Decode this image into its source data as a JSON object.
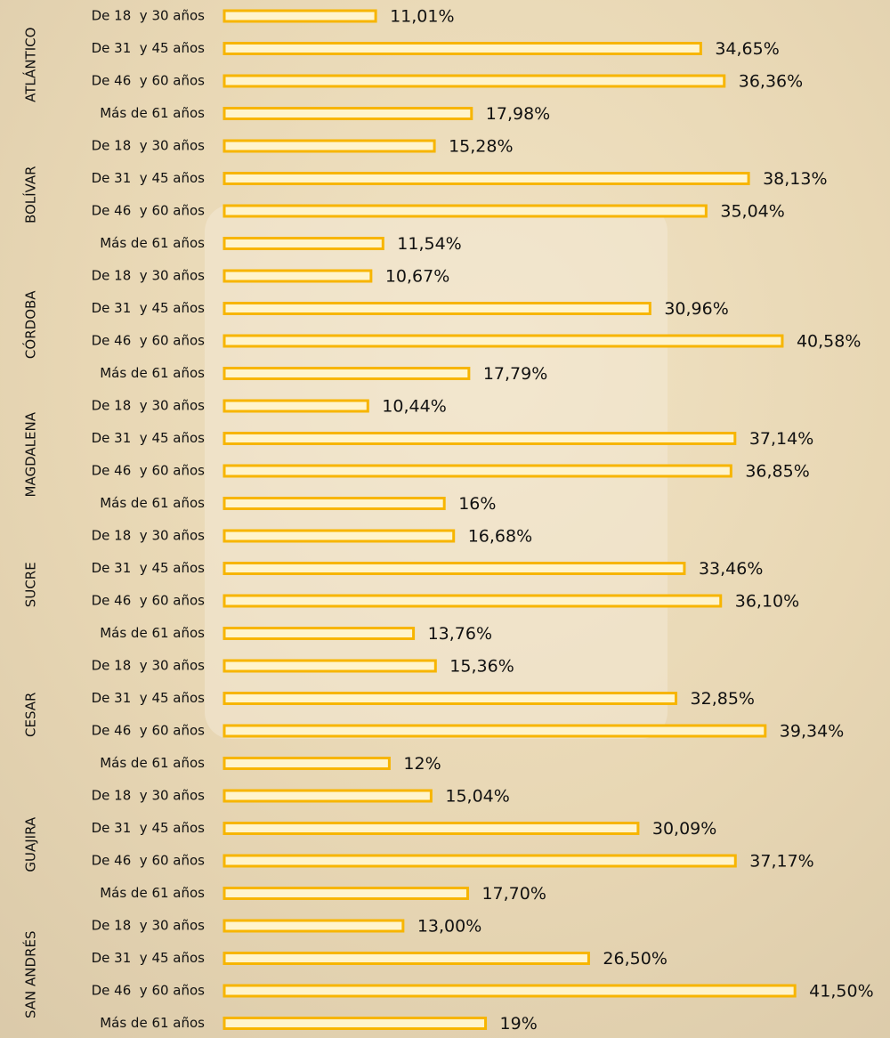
{
  "chart_data": {
    "type": "bar",
    "orientation": "horizontal",
    "color": "#f7b500",
    "groups": [
      {
        "name": "ATLÁNTICO",
        "categories": [
          "De 18  y 30 años",
          "De 31  y 45 años",
          "De 46  y 60 años",
          "Más de 61 años"
        ],
        "values": [
          11.01,
          34.65,
          36.36,
          17.98
        ],
        "value_labels": [
          "11,01%",
          "34,65%",
          "36,36%",
          "17,98%"
        ]
      },
      {
        "name": "BOLÍVAR",
        "categories": [
          "De 18  y 30 años",
          "De 31  y 45 años",
          "De 46  y 60 años",
          "Más de 61 años"
        ],
        "values": [
          15.28,
          38.13,
          35.04,
          11.54
        ],
        "value_labels": [
          "15,28%",
          "38,13%",
          "35,04%",
          "11,54%"
        ]
      },
      {
        "name": "CÓRDOBA",
        "categories": [
          "De 18  y 30 años",
          "De 31  y 45 años",
          "De 46  y 60 años",
          "Más de 61 años"
        ],
        "values": [
          10.67,
          30.96,
          40.58,
          17.79
        ],
        "value_labels": [
          "10,67%",
          "30,96%",
          "40,58%",
          "17,79%"
        ]
      },
      {
        "name": "MAGDALENA",
        "categories": [
          "De 18  y 30 años",
          "De 31  y 45 años",
          "De 46  y 60 años",
          "Más de 61 años"
        ],
        "values": [
          10.44,
          37.14,
          36.85,
          16
        ],
        "value_labels": [
          "10,44%",
          "37,14%",
          "36,85%",
          "16%"
        ]
      },
      {
        "name": "SUCRE",
        "categories": [
          "De 18  y 30 años",
          "De 31  y 45 años",
          "De 46  y 60 años",
          "Más de 61 años"
        ],
        "values": [
          16.68,
          33.46,
          36.1,
          13.76
        ],
        "value_labels": [
          "16,68%",
          "33,46%",
          "36,10%",
          "13,76%"
        ]
      },
      {
        "name": "CESAR",
        "categories": [
          "De 18  y 30 años",
          "De 31  y 45 años",
          "De 46  y 60 años",
          "Más de 61 años"
        ],
        "values": [
          15.36,
          32.85,
          39.34,
          12
        ],
        "value_labels": [
          "15,36%",
          "32,85%",
          "39,34%",
          "12%"
        ]
      },
      {
        "name": "GUAJIRA",
        "categories": [
          "De 18  y 30 años",
          "De 31  y 45 años",
          "De 46  y 60 años",
          "Más de 61 años"
        ],
        "values": [
          15.04,
          30.09,
          37.17,
          17.7
        ],
        "value_labels": [
          "15,04%",
          "30,09%",
          "37,17%",
          "17,70%"
        ]
      },
      {
        "name": "SAN ANDRÉS",
        "categories": [
          "De 18  y 30 años",
          "De 31  y 45 años",
          "De 46  y 60 años",
          "Más de 61 años"
        ],
        "values": [
          13.0,
          26.5,
          41.5,
          19
        ],
        "value_labels": [
          "13,00%",
          "26,50%",
          "41,50%",
          "19%"
        ]
      }
    ]
  }
}
